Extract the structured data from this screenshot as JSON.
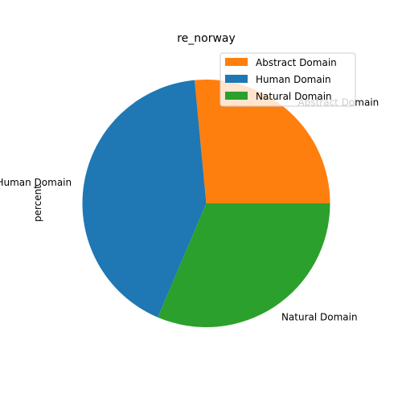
{
  "chart_data": {
    "type": "pie",
    "title": "re_norway",
    "ylabel": "percent",
    "slices": [
      {
        "label": "Abstract Domain",
        "value": 26.5,
        "color": "#ff7f0e"
      },
      {
        "label": "Human Domain",
        "value": 42.1,
        "color": "#1f77b4"
      },
      {
        "label": "Natural Domain",
        "value": 31.4,
        "color": "#2ca02c"
      }
    ],
    "start_angle": 0,
    "direction": "counterclockwise",
    "legend": {
      "placement": "upper right",
      "entries": [
        "Abstract Domain",
        "Human Domain",
        "Natural Domain"
      ]
    }
  }
}
